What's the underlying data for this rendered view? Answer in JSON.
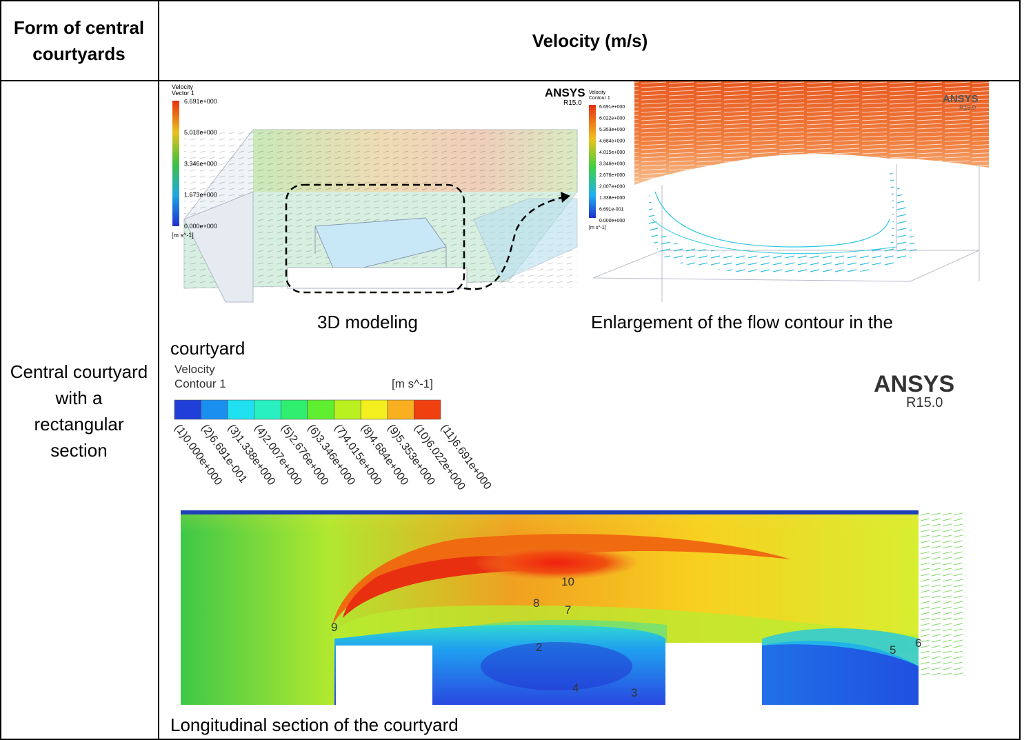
{
  "header": {
    "col1": "Form of central courtyards",
    "col2": "Velocity (m/s)"
  },
  "row": {
    "label": "Central courtyard with a rectangular section",
    "caption_3d": "3D modeling",
    "caption_enlargement_line1": "Enlargement of the flow contour in the",
    "caption_enlargement_line2": "courtyard",
    "caption_section": "Longitudinal section of the courtyard"
  },
  "fig_vector": {
    "title1": "Velocity",
    "title2": "Vector 1",
    "unit": "[m s^-1]",
    "ticks": [
      "6.691e+000",
      "5.018e+000",
      "3.346e+000",
      "1.673e+000",
      "0.000e+000"
    ],
    "brand": "ANSYS",
    "version": "R15.0"
  },
  "fig_enlarged": {
    "title1": "Velocity",
    "title2": "Contour 1",
    "unit": "[m s^-1]",
    "ticks": [
      "6.691e+000",
      "6.022e+000",
      "5.353e+000",
      "4.684e+000",
      "4.015e+000",
      "3.346e+000",
      "2.676e+000",
      "2.007e+000",
      "1.338e+000",
      "6.691e-001",
      "0.000e+000"
    ],
    "brand": "ANSYS",
    "version": "R15.0"
  },
  "fig_contour": {
    "title1": "Velocity",
    "title2": "Contour 1",
    "unit": "[m s^-1]",
    "brand": "ANSYS",
    "version": "R15.0",
    "legend_labels": [
      "(1)0.000e+000",
      "(2)6.691e-001",
      "(3)1.338e+000",
      "(4)2.007e+000",
      "(5)2.676e+000",
      "(6)3.346e+000",
      "(7)4.015e+000",
      "(8)4.684e+000",
      "(9)5.353e+000",
      "(10)6.022e+000",
      "(11)6.691e+000"
    ],
    "legend_colors": [
      "#1f3fd8",
      "#1b8ff0",
      "#1fe0f0",
      "#28f0c0",
      "#30ee70",
      "#60ee30",
      "#b8f020",
      "#f4f020",
      "#f8b020",
      "#f04010"
    ],
    "point_labels": [
      "10",
      "8",
      "7",
      "9",
      "2",
      "4",
      "3",
      "5",
      "6"
    ]
  }
}
